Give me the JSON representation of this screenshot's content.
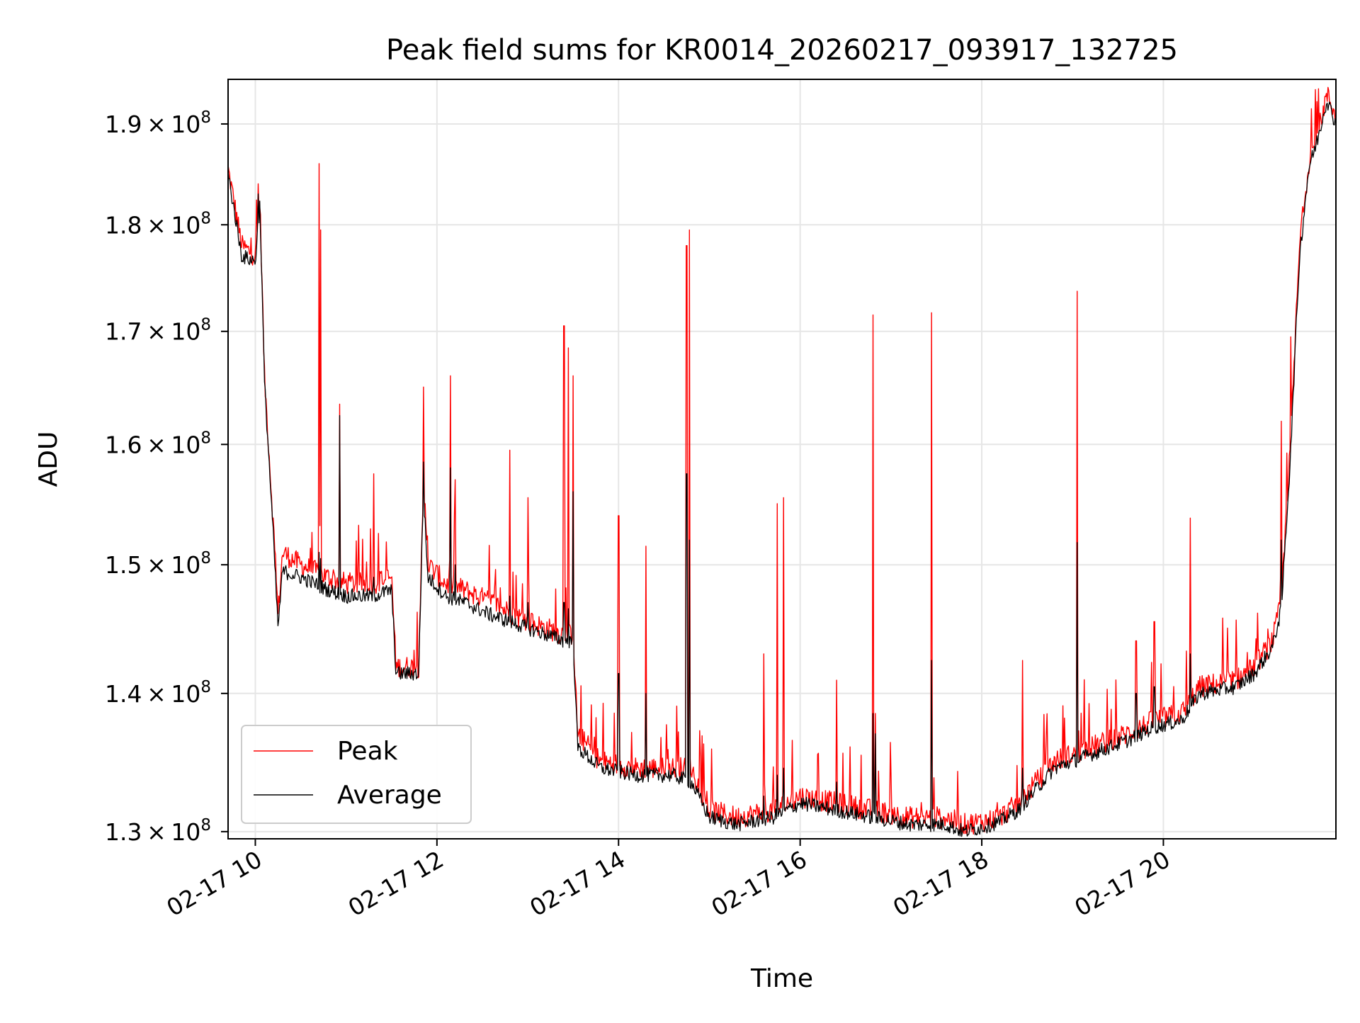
{
  "chart_data": {
    "type": "line",
    "title": "Peak field sums for KR0014_20260217_093917_132725",
    "xlabel": "Time",
    "ylabel": "ADU",
    "y_scale": "log",
    "xlim": [
      9.7,
      21.9
    ],
    "ylim": [
      129500000,
      194600000
    ],
    "grid": true,
    "legend_position": "lower-left",
    "x_ticks": [
      {
        "value": 10,
        "label": "02-17 10"
      },
      {
        "value": 12,
        "label": "02-17 12"
      },
      {
        "value": 14,
        "label": "02-17 14"
      },
      {
        "value": 16,
        "label": "02-17 16"
      },
      {
        "value": 18,
        "label": "02-17 18"
      },
      {
        "value": 20,
        "label": "02-17 20"
      }
    ],
    "y_ticks": [
      {
        "value": 130000000,
        "mantissa": "1.3",
        "base": "10",
        "exponent": "8"
      },
      {
        "value": 140000000,
        "mantissa": "1.4",
        "base": "10",
        "exponent": "8"
      },
      {
        "value": 150000000,
        "mantissa": "1.5",
        "base": "10",
        "exponent": "8"
      },
      {
        "value": 160000000,
        "mantissa": "1.6",
        "base": "10",
        "exponent": "8"
      },
      {
        "value": 170000000,
        "mantissa": "1.7",
        "base": "10",
        "exponent": "8"
      },
      {
        "value": 180000000,
        "mantissa": "1.8",
        "base": "10",
        "exponent": "8"
      },
      {
        "value": 190000000,
        "mantissa": "1.9",
        "base": "10",
        "exponent": "8"
      }
    ],
    "series": [
      {
        "name": "Peak",
        "color": "#ff0000",
        "x": [
          9.7,
          9.85,
          10.0,
          10.05,
          10.1,
          10.2,
          10.25,
          10.3,
          10.5,
          10.8,
          11.0,
          11.3,
          11.5,
          11.55,
          11.6,
          11.8,
          11.85,
          11.9,
          12.1,
          12.3,
          12.6,
          13.0,
          13.4,
          13.5,
          13.55,
          13.8,
          14.2,
          14.6,
          14.8,
          15.0,
          15.3,
          15.7,
          16.0,
          16.4,
          16.8,
          17.2,
          17.6,
          17.8,
          18.0,
          18.2,
          18.4,
          18.8,
          19.2,
          19.6,
          19.9,
          20.2,
          20.4,
          20.8,
          21.0,
          21.2,
          21.3,
          21.4,
          21.5,
          21.6,
          21.7,
          21.8,
          21.9
        ],
        "y": [
          185500000,
          178000000,
          177000000,
          182500000,
          166000000,
          153000000,
          146000000,
          151000000,
          150000000,
          149000000,
          148500000,
          148500000,
          149000000,
          142000000,
          142000000,
          142000000,
          157000000,
          150000000,
          148500000,
          148000000,
          147000000,
          145500000,
          144500000,
          144500000,
          137000000,
          135000000,
          134500000,
          134500000,
          134500000,
          131500000,
          131000000,
          131500000,
          132500000,
          132000000,
          131500000,
          131000000,
          131000000,
          130500000,
          130700000,
          131000000,
          132000000,
          135000000,
          136000000,
          137000000,
          138000000,
          138500000,
          140500000,
          141000000,
          142000000,
          144000000,
          147000000,
          160000000,
          178000000,
          186000000,
          189000000,
          193000000,
          191000000
        ]
      },
      {
        "name": "Average",
        "color": "#000000",
        "x": [
          9.7,
          9.85,
          10.0,
          10.05,
          10.1,
          10.2,
          10.25,
          10.3,
          10.5,
          10.8,
          11.0,
          11.3,
          11.5,
          11.55,
          11.6,
          11.8,
          11.85,
          11.9,
          12.1,
          12.3,
          12.6,
          13.0,
          13.4,
          13.5,
          13.55,
          13.8,
          14.2,
          14.6,
          14.8,
          15.0,
          15.3,
          15.7,
          16.0,
          16.4,
          16.8,
          17.2,
          17.6,
          17.8,
          18.0,
          18.2,
          18.4,
          18.8,
          19.2,
          19.6,
          19.9,
          20.2,
          20.4,
          20.8,
          21.0,
          21.2,
          21.3,
          21.4,
          21.5,
          21.6,
          21.7,
          21.8,
          21.9
        ],
        "y": [
          185000000,
          177000000,
          176500000,
          182000000,
          165500000,
          152000000,
          145000000,
          149500000,
          149000000,
          148000000,
          147500000,
          147500000,
          148000000,
          141500000,
          141500000,
          141500000,
          156000000,
          149000000,
          147500000,
          147000000,
          146000000,
          145000000,
          144000000,
          144000000,
          136000000,
          134500000,
          134000000,
          134000000,
          133500000,
          131000000,
          130500000,
          131000000,
          132000000,
          131500000,
          131000000,
          130500000,
          130500000,
          130000000,
          130300000,
          130700000,
          131500000,
          134500000,
          135500000,
          136500000,
          137500000,
          138000000,
          140000000,
          140500000,
          141500000,
          143500000,
          146500000,
          159000000,
          177000000,
          185500000,
          188500000,
          192500000,
          190000000
        ]
      }
    ],
    "spikes": {
      "x": [
        10.03,
        10.7,
        10.72,
        10.93,
        11.3,
        11.85,
        12.15,
        12.2,
        12.8,
        13.0,
        13.4,
        13.45,
        13.5,
        14.0,
        14.3,
        14.75,
        14.78,
        15.6,
        15.75,
        15.82,
        16.4,
        16.8,
        16.83,
        17.45,
        18.45,
        19.05,
        19.7,
        19.9,
        20.3,
        21.3,
        21.4
      ],
      "peak": [
        184000000,
        186000000,
        179500000,
        163500000,
        157500000,
        165000000,
        166000000,
        157000000,
        159500000,
        155500000,
        170500000,
        168500000,
        166000000,
        154000000,
        151500000,
        178000000,
        179500000,
        143000000,
        155000000,
        155500000,
        141000000,
        171500000,
        138500000,
        171700000,
        142500000,
        173700000,
        144000000,
        145500000,
        153800000,
        162000000,
        169500000
      ],
      "avg": [
        183000000,
        151000000,
        150500000,
        162500000,
        149000000,
        158500000,
        158000000,
        150000000,
        147500000,
        147000000,
        147000000,
        146500000,
        156000000,
        141500000,
        140000000,
        157500000,
        152000000,
        132500000,
        134000000,
        134500000,
        133500000,
        138500000,
        137000000,
        142500000,
        134500000,
        151800000,
        140000000,
        140500000,
        143000000,
        152000000,
        160000000
      ]
    },
    "legend": [
      {
        "label": "Peak",
        "color": "#ff0000"
      },
      {
        "label": "Average",
        "color": "#000000"
      }
    ]
  }
}
